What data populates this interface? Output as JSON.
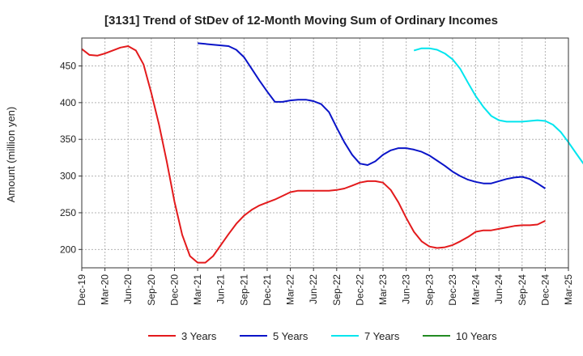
{
  "chart_data": {
    "type": "line",
    "title": "[3131]  Trend of StDev of 12-Month Moving Sum of Ordinary Incomes",
    "xlabel": "",
    "ylabel": "Amount (million yen)",
    "ylim": [
      175,
      488
    ],
    "yticks": [
      200,
      250,
      300,
      350,
      400,
      450
    ],
    "xticks": [
      "Dec-19",
      "Mar-20",
      "Jun-20",
      "Sep-20",
      "Dec-20",
      "Mar-21",
      "Jun-21",
      "Sep-21",
      "Dec-21",
      "Mar-22",
      "Jun-22",
      "Sep-22",
      "Dec-22",
      "Mar-23",
      "Jun-23",
      "Sep-23",
      "Dec-23",
      "Mar-24",
      "Jun-24",
      "Sep-24",
      "Dec-24",
      "Mar-25"
    ],
    "grid": true,
    "legend_position": "bottom",
    "series": [
      {
        "name": "3 Years",
        "color": "#e31a1c",
        "start_index": 0,
        "values": [
          473,
          465,
          464,
          467,
          471,
          475,
          477,
          471,
          452,
          413,
          370,
          320,
          265,
          220,
          191,
          182,
          182,
          191,
          206,
          221,
          235,
          246,
          254,
          260,
          264,
          268,
          273,
          278,
          280,
          280,
          280,
          280,
          280,
          281,
          283,
          287,
          291,
          293,
          293,
          291,
          281,
          264,
          243,
          224,
          211,
          204,
          202,
          203,
          206,
          211,
          217,
          224,
          226,
          226,
          228,
          230,
          232,
          233,
          233,
          234,
          239
        ]
      },
      {
        "name": "5 Years",
        "color": "#0a14c8",
        "start_index": 15,
        "values": [
          481,
          480,
          479,
          478,
          477,
          472,
          462,
          446,
          430,
          415,
          401,
          401,
          403,
          404,
          404,
          402,
          398,
          387,
          366,
          346,
          329,
          317,
          315,
          320,
          329,
          335,
          338,
          338,
          336,
          333,
          328,
          321,
          314,
          306,
          300,
          295,
          292,
          290,
          290,
          293,
          296,
          298,
          299,
          296,
          290,
          283
        ]
      },
      {
        "name": "7 Years",
        "color": "#00e5ee",
        "start_index": 43,
        "values": [
          471,
          474,
          474,
          472,
          467,
          459,
          446,
          427,
          409,
          394,
          382,
          376,
          374,
          374,
          374,
          375,
          376,
          375,
          370,
          360,
          346,
          331,
          316
        ]
      },
      {
        "name": "10 Years",
        "color": "#228b22",
        "start_index": 0,
        "values": []
      }
    ]
  }
}
